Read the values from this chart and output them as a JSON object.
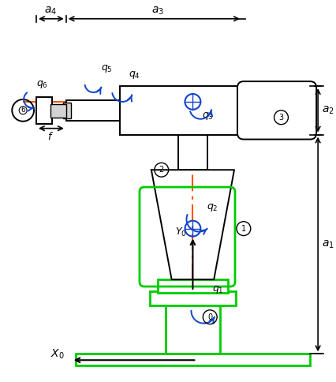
{
  "bg_color": "#ffffff",
  "green": "#00cc00",
  "blue": "#1144cc",
  "orange": "#ff5500",
  "black": "#000000",
  "gray": "#888888",
  "lw_robot": 1.4,
  "lw_green": 2.0,
  "lw_dim": 1.2
}
